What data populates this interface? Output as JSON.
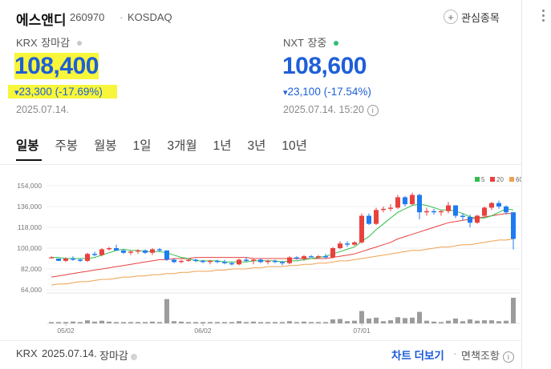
{
  "header": {
    "name": "에스앤디",
    "code": "260970",
    "separator": "·",
    "market": "KOSDAQ",
    "favorite_label": "관심종목",
    "favorite_plus": "+"
  },
  "krx": {
    "exchange": "KRX",
    "status": "장마감",
    "status_color": "#c8c8c8",
    "price": "108,400",
    "arrow": "▾",
    "change": "23,300",
    "change_pct": "(-17.69%)",
    "date": "2025.07.14."
  },
  "nxt": {
    "exchange": "NXT",
    "status": "장중",
    "status_color": "#2fbf71",
    "price": "108,600",
    "arrow": "▾",
    "change": "23,100",
    "change_pct": "(-17.54%)",
    "date": "2025.07.14. 15:20",
    "info": "i"
  },
  "tabs": [
    {
      "label": "일봉"
    },
    {
      "label": "주봉"
    },
    {
      "label": "월봉"
    },
    {
      "label": "1일"
    },
    {
      "label": "3개월"
    },
    {
      "label": "1년"
    },
    {
      "label": "3년"
    },
    {
      "label": "10년"
    }
  ],
  "chart_data": {
    "type": "candlestick",
    "y_ticks": [
      "154,000",
      "136,000",
      "118,000",
      "100,000",
      "82,000",
      "64,000"
    ],
    "x_ticks": [
      "05/02",
      "06/02",
      "07/01"
    ],
    "ylim": [
      64000,
      154000
    ],
    "legend": [
      {
        "label": "5",
        "color": "#2fbe4a"
      },
      {
        "label": "20",
        "color": "#e8413e"
      },
      {
        "label": "60",
        "color": "#f0a050"
      }
    ],
    "up_color": "#e8413e",
    "down_color": "#1e7bf0",
    "volume_color": "#9c9c9c",
    "candles": [
      [
        92,
        93,
        91,
        92
      ],
      [
        91,
        91,
        89,
        89
      ],
      [
        89,
        92,
        88,
        91
      ],
      [
        91,
        93,
        89,
        90
      ],
      [
        90,
        91,
        88,
        89
      ],
      [
        89,
        96,
        88,
        95
      ],
      [
        95,
        97,
        93,
        94
      ],
      [
        94,
        100,
        93,
        99
      ],
      [
        99,
        101,
        98,
        100
      ],
      [
        100,
        103,
        98,
        98
      ],
      [
        98,
        99,
        95,
        96
      ],
      [
        96,
        98,
        94,
        97
      ],
      [
        97,
        99,
        95,
        98
      ],
      [
        98,
        99,
        95,
        96
      ],
      [
        96,
        100,
        94,
        99
      ],
      [
        99,
        100,
        97,
        98
      ],
      [
        98,
        98,
        89,
        90
      ],
      [
        90,
        91,
        87,
        88
      ],
      [
        88,
        90,
        87,
        89
      ],
      [
        89,
        91,
        88,
        90
      ],
      [
        90,
        91,
        88,
        89
      ],
      [
        89,
        90,
        87,
        88
      ],
      [
        88,
        90,
        86,
        89
      ],
      [
        89,
        90,
        87,
        88
      ],
      [
        88,
        90,
        86,
        87
      ],
      [
        87,
        88,
        85,
        86
      ],
      [
        86,
        91,
        85,
        90
      ],
      [
        90,
        92,
        88,
        89
      ],
      [
        89,
        91,
        86,
        90
      ],
      [
        90,
        91,
        87,
        88
      ],
      [
        88,
        90,
        86,
        89
      ],
      [
        89,
        90,
        87,
        88
      ],
      [
        88,
        89,
        85,
        87
      ],
      [
        87,
        93,
        86,
        92
      ],
      [
        92,
        93,
        90,
        91
      ],
      [
        91,
        94,
        89,
        93
      ],
      [
        93,
        94,
        92,
        92
      ],
      [
        92,
        94,
        91,
        93
      ],
      [
        93,
        95,
        91,
        92
      ],
      [
        92,
        101,
        91,
        100
      ],
      [
        100,
        106,
        99,
        104
      ],
      [
        104,
        106,
        101,
        103
      ],
      [
        103,
        106,
        102,
        105
      ],
      [
        105,
        130,
        104,
        128
      ],
      [
        128,
        130,
        120,
        121
      ],
      [
        121,
        135,
        120,
        133
      ],
      [
        133,
        136,
        131,
        134
      ],
      [
        134,
        138,
        132,
        135
      ],
      [
        135,
        146,
        134,
        144
      ],
      [
        144,
        145,
        136,
        138
      ],
      [
        138,
        148,
        137,
        146
      ],
      [
        146,
        147,
        125,
        131
      ],
      [
        131,
        135,
        128,
        132
      ],
      [
        132,
        134,
        129,
        131
      ],
      [
        131,
        133,
        128,
        132
      ],
      [
        132,
        140,
        130,
        137
      ],
      [
        137,
        137,
        126,
        128
      ],
      [
        128,
        130,
        124,
        127
      ],
      [
        127,
        129,
        118,
        122
      ],
      [
        122,
        129,
        121,
        128
      ],
      [
        128,
        136,
        127,
        135
      ],
      [
        135,
        140,
        133,
        139
      ],
      [
        139,
        141,
        134,
        136
      ],
      [
        136,
        137,
        129,
        131
      ],
      [
        131,
        131,
        99,
        108
      ]
    ],
    "ma5": [
      92,
      92,
      91,
      91,
      91,
      91,
      92,
      94,
      96,
      98,
      99,
      98,
      98,
      97,
      97,
      97,
      96,
      94,
      92,
      91,
      89,
      89,
      89,
      89,
      88,
      88,
      88,
      88,
      89,
      89,
      89,
      89,
      88,
      89,
      89,
      90,
      91,
      92,
      93,
      95,
      97,
      99,
      101,
      106,
      110,
      116,
      121,
      126,
      131,
      134,
      137,
      138,
      137,
      135,
      133,
      133,
      132,
      130,
      127,
      126,
      126,
      128,
      131,
      134,
      133
    ],
    "ma20": [
      75,
      76,
      77,
      78,
      79,
      80,
      81,
      82,
      83,
      84,
      85,
      86,
      87,
      88,
      89,
      90,
      90,
      91,
      91,
      91,
      92,
      92,
      92,
      92,
      92,
      92,
      92,
      92,
      91,
      91,
      91,
      91,
      91,
      91,
      91,
      91,
      91,
      91,
      91,
      92,
      93,
      94,
      95,
      97,
      99,
      101,
      103,
      105,
      108,
      110,
      112,
      114,
      116,
      118,
      120,
      122,
      123,
      124,
      125,
      126,
      127,
      128,
      129,
      130,
      130
    ],
    "ma60": [
      68,
      69,
      69,
      70,
      71,
      71,
      72,
      73,
      73,
      74,
      75,
      75,
      76,
      76,
      77,
      77,
      78,
      78,
      79,
      79,
      80,
      80,
      80,
      81,
      81,
      82,
      82,
      82,
      83,
      83,
      84,
      84,
      84,
      85,
      85,
      86,
      86,
      87,
      87,
      88,
      89,
      89,
      90,
      91,
      92,
      93,
      94,
      95,
      96,
      97,
      98,
      98,
      99,
      100,
      101,
      101,
      102,
      103,
      103,
      104,
      105,
      106,
      107,
      107,
      108
    ],
    "volume": [
      3,
      3,
      3,
      4,
      3,
      7,
      4,
      6,
      4,
      3,
      3,
      3,
      3,
      3,
      4,
      3,
      55,
      5,
      4,
      3,
      3,
      3,
      3,
      3,
      3,
      3,
      5,
      3,
      4,
      3,
      3,
      3,
      3,
      5,
      3,
      4,
      3,
      3,
      3,
      9,
      10,
      5,
      6,
      28,
      11,
      13,
      5,
      7,
      14,
      12,
      13,
      26,
      6,
      4,
      3,
      6,
      11,
      5,
      9,
      6,
      7,
      7,
      5,
      6,
      58
    ]
  },
  "footer": {
    "exchange": "KRX",
    "date": "2025.07.14.",
    "status": "장마감",
    "chart_more": "차트 더보기",
    "sep_dot": "·",
    "disclaimer": "면책조항",
    "info": "i"
  }
}
